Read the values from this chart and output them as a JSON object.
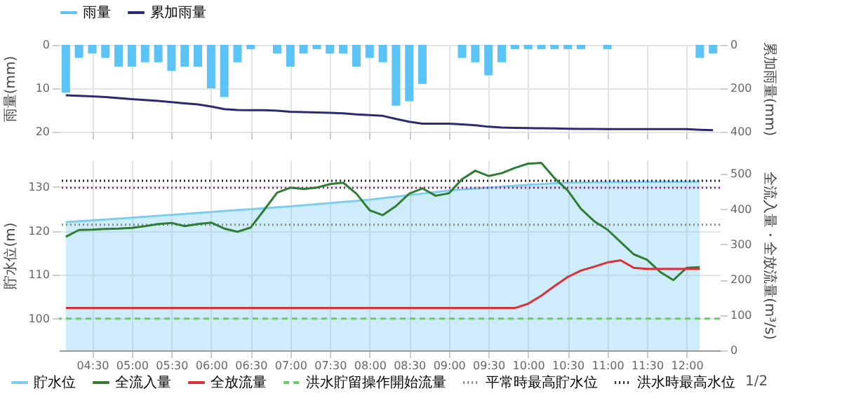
{
  "chart_data": [
    {
      "type": "bar",
      "ylabel": "雨量(mm)",
      "y2label": "累加雨量(mm)",
      "legend": "top",
      "grid": true,
      "tick_labels": "y",
      "x": [
        4.1667,
        4.3333,
        4.5,
        4.6667,
        4.8333,
        5,
        5.1667,
        5.3333,
        5.5,
        5.6667,
        5.8333,
        6,
        6.1667,
        6.3333,
        6.5,
        6.6667,
        6.8333,
        7,
        7.1667,
        7.3333,
        7.5,
        7.6667,
        7.8333,
        8,
        8.1667,
        8.3333,
        8.5,
        8.6667,
        8.8333,
        9,
        9.1667,
        9.3333,
        9.5,
        9.6667,
        9.8333,
        10,
        10.1667,
        10.3333,
        10.5,
        10.6667,
        10.8333,
        11,
        11.1667,
        11.3333,
        11.5,
        11.6667,
        11.8333,
        12,
        12.1667,
        12.3333
      ],
      "xlim": [
        4.08,
        12.42
      ],
      "xticks": [
        {
          "value": 4.5,
          "label": null
        },
        {
          "value": 5,
          "label": null
        },
        {
          "value": 5.5,
          "label": null
        },
        {
          "value": 6,
          "label": null
        },
        {
          "value": 6.5,
          "label": null
        },
        {
          "value": 7,
          "label": null
        },
        {
          "value": 7.5,
          "label": null
        },
        {
          "value": 8,
          "label": null
        },
        {
          "value": 8.5,
          "label": null
        },
        {
          "value": 9,
          "label": null
        },
        {
          "value": 9.5,
          "label": null
        },
        {
          "value": 10,
          "label": null
        },
        {
          "value": 10.5,
          "label": null
        },
        {
          "value": 11,
          "label": null
        },
        {
          "value": 11.5,
          "label": null
        },
        {
          "value": 12,
          "label": null
        }
      ],
      "ylim": [
        20,
        0
      ],
      "yticks": [
        0,
        10,
        20
      ],
      "y2lim": [
        400,
        0
      ],
      "y2ticks": [
        0,
        200,
        400
      ],
      "series": [
        {
          "name": "雨量",
          "color": "#5bc3f5",
          "values": [
            11,
            3,
            2,
            3,
            5,
            5,
            4,
            4,
            6,
            5,
            5,
            10,
            12,
            4,
            1,
            0,
            2,
            5,
            2,
            1,
            2,
            2,
            5,
            3,
            4,
            14,
            13,
            9,
            0,
            0,
            3,
            4,
            7,
            4,
            1,
            1,
            1,
            1,
            1,
            1,
            0,
            1,
            0,
            0,
            0,
            0,
            0,
            0,
            3,
            2
          ]
        },
        {
          "name": "累加雨量",
          "type": "line",
          "axis": "y2",
          "color": "#2b2a72",
          "values": [
            232,
            235,
            237,
            240,
            245,
            250,
            254,
            258,
            264,
            269,
            274,
            284,
            296,
            300,
            301,
            301,
            303,
            308,
            310,
            311,
            313,
            315,
            320,
            323,
            327,
            341,
            354,
            363,
            363,
            363,
            366,
            370,
            377,
            381,
            382,
            383,
            384,
            385,
            386,
            387,
            387,
            388,
            388,
            388,
            388,
            388,
            388,
            388,
            391,
            393
          ]
        }
      ]
    },
    {
      "type": "line",
      "ylabel": "貯水位(m)",
      "y2label": "全流入量・全放流量(m³/s)",
      "legend": "bottom",
      "grid": true,
      "x": [
        4.1667,
        4.3333,
        4.5,
        4.6667,
        4.8333,
        5,
        5.1667,
        5.3333,
        5.5,
        5.6667,
        5.8333,
        6,
        6.1667,
        6.3333,
        6.5,
        6.6667,
        6.8333,
        7,
        7.1667,
        7.3333,
        7.5,
        7.6667,
        7.8333,
        8,
        8.1667,
        8.3333,
        8.5,
        8.6667,
        8.8333,
        9,
        9.1667,
        9.3333,
        9.5,
        9.6667,
        9.8333,
        10,
        10.1667,
        10.3333,
        10.5,
        10.6667,
        10.8333,
        11,
        11.1667,
        11.3333,
        11.5,
        11.6667,
        11.8333,
        12,
        12.1667
      ],
      "xlim": [
        4.08,
        12.42
      ],
      "xticks": [
        {
          "value": 4.5,
          "label": "04:30"
        },
        {
          "value": 5,
          "label": "05:00"
        },
        {
          "value": 5.5,
          "label": "05:30"
        },
        {
          "value": 6,
          "label": "06:00"
        },
        {
          "value": 6.5,
          "label": "06:30"
        },
        {
          "value": 7,
          "label": "07:00"
        },
        {
          "value": 7.5,
          "label": "07:30"
        },
        {
          "value": 8,
          "label": "08:00"
        },
        {
          "value": 8.5,
          "label": "08:30"
        },
        {
          "value": 9,
          "label": "09:00"
        },
        {
          "value": 9.5,
          "label": "09:30"
        },
        {
          "value": 10,
          "label": "10:00"
        },
        {
          "value": 10.5,
          "label": "10:30"
        },
        {
          "value": 11,
          "label": "11:00"
        },
        {
          "value": 11.5,
          "label": "11:30"
        },
        {
          "value": 12,
          "label": "12:00"
        }
      ],
      "ylim": [
        92.8,
        136.2
      ],
      "yticks": [
        100,
        110,
        120,
        130
      ],
      "y2lim": [
        0,
        540
      ],
      "y2ticks": [
        0,
        100,
        200,
        300,
        400,
        500
      ],
      "series": [
        {
          "name": "貯水位",
          "type": "area",
          "color": "#7fcdee",
          "x": [
            4.1667,
            5,
            6,
            7,
            8,
            9,
            10,
            10.5,
            11,
            12.1667
          ],
          "values": [
            122.0,
            123.0,
            124.3,
            125.6,
            127.1,
            129.2,
            130.5,
            131.0,
            131.1,
            131.2
          ]
        },
        {
          "name": "全流入量",
          "axis": "y2",
          "color": "#2e7d32",
          "values": [
            322,
            341,
            342,
            344,
            345,
            347,
            352,
            358,
            361,
            352,
            358,
            362,
            345,
            336,
            348,
            397,
            447,
            461,
            457,
            461,
            471,
            475,
            444,
            397,
            383,
            409,
            444,
            459,
            438,
            445,
            485,
            509,
            494,
            502,
            517,
            529,
            531,
            488,
            453,
            401,
            366,
            342,
            307,
            272,
            257,
            222,
            199,
            234,
            236
          ]
        },
        {
          "name": "全放流量",
          "axis": "y2",
          "color": "#d9303a",
          "values": [
            120,
            120,
            120,
            120,
            120,
            120,
            120,
            120,
            120,
            120,
            120,
            120,
            120,
            120,
            120,
            120,
            120,
            120,
            120,
            120,
            120,
            120,
            120,
            120,
            120,
            120,
            120,
            120,
            120,
            120,
            120,
            120,
            120,
            120,
            120,
            132,
            155,
            182,
            208,
            226,
            237,
            249,
            255,
            234,
            231,
            231,
            231,
            231,
            231
          ]
        }
      ],
      "ref_lines": [
        {
          "axis": "y2",
          "value": 90,
          "label": "洪水貯留操作開始流量",
          "color": "#66cc66",
          "line_style": "dashed"
        },
        {
          "axis": "y",
          "value": 121.4,
          "label": "平常時最高貯水位",
          "color": "#888888",
          "line_style": "dotted"
        },
        {
          "axis": "y",
          "value": 131.4,
          "label": "洪水時最高水位",
          "color": "#222222",
          "line_style": "dotted"
        },
        {
          "axis": "y",
          "value": 129.8,
          "color": "#8a2a8a",
          "line_style": "dotted"
        }
      ],
      "annotations": [
        "1/2"
      ]
    }
  ]
}
